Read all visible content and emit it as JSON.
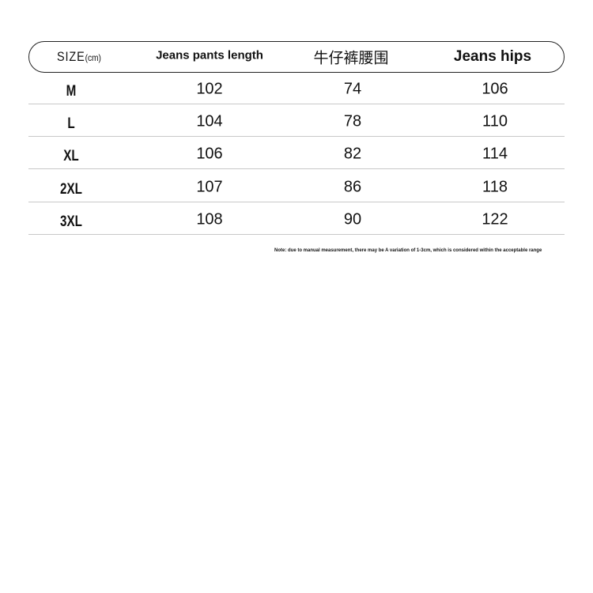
{
  "headers": {
    "size": "SIZE",
    "size_unit": "(cm)",
    "length": "Jeans pants length",
    "waist": "牛仔裤腰围",
    "hips": "Jeans hips"
  },
  "rows": [
    {
      "size": "M",
      "length": "102",
      "waist": "74",
      "hips": "106"
    },
    {
      "size": "L",
      "length": "104",
      "waist": "78",
      "hips": "110"
    },
    {
      "size": "XL",
      "length": "106",
      "waist": "82",
      "hips": "114"
    },
    {
      "size": "2XL",
      "length": "107",
      "waist": "86",
      "hips": "118"
    },
    {
      "size": "3XL",
      "length": "108",
      "waist": "90",
      "hips": "122"
    }
  ],
  "note": "Note: due to manual measurement, there may be A variation of 1-3cm, which is considered within the acceptable range"
}
